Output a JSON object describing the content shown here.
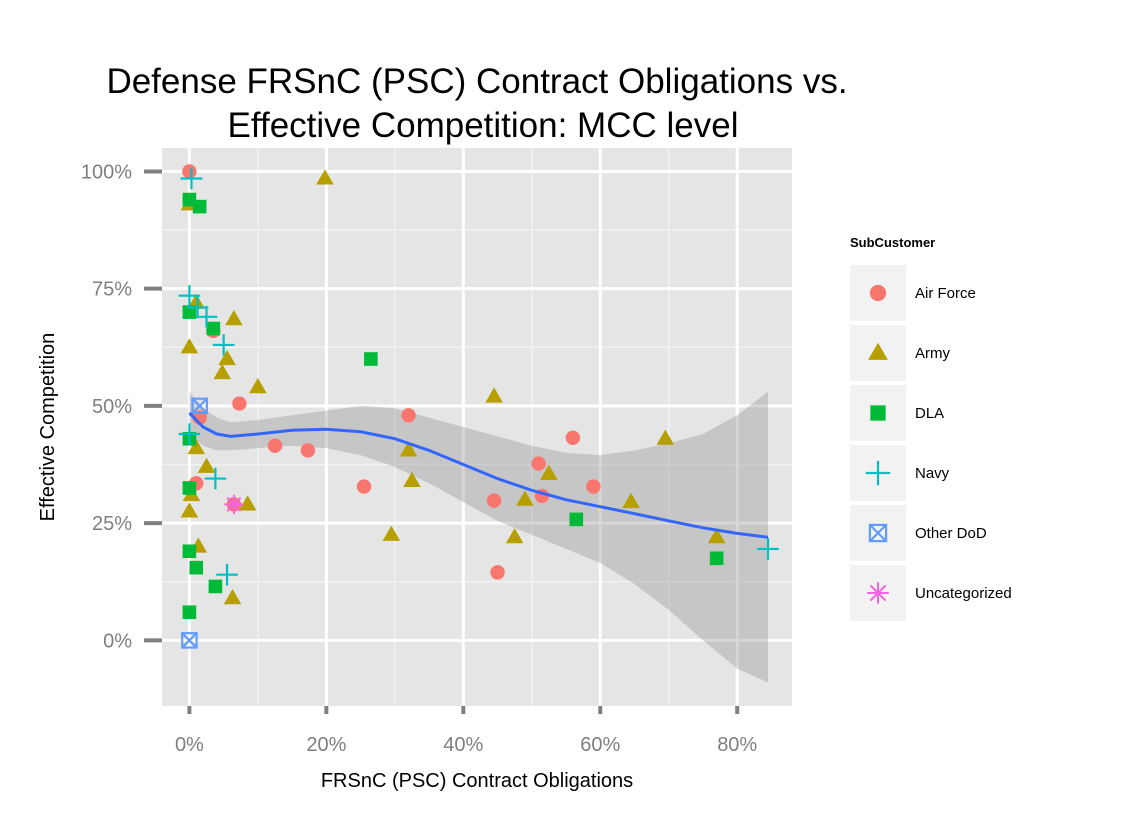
{
  "chart_data": {
    "type": "scatter",
    "title_lines": [
      "Defense FRSnC (PSC) Contract Obligations vs.",
      "Effective Competition: MCC level"
    ],
    "xlabel": "FRSnC (PSC) Contract Obligations",
    "ylabel": "Effective Competition",
    "xlim": [
      -0.04,
      0.88
    ],
    "ylim": [
      -0.14,
      1.05
    ],
    "x_ticks": [
      0,
      0.2,
      0.4,
      0.6,
      0.8
    ],
    "x_tick_labels": [
      "0%",
      "20%",
      "40%",
      "60%",
      "80%"
    ],
    "y_ticks": [
      0,
      0.25,
      0.5,
      0.75,
      1.0
    ],
    "y_tick_labels": [
      "0%",
      "25%",
      "50%",
      "75%",
      "100%"
    ],
    "grid": true,
    "legend_position": "right",
    "legend_title": "SubCustomer",
    "series": [
      {
        "name": "Air Force",
        "shape": "circle",
        "color": "#F8766D",
        "points": [
          [
            0.0,
            1.0
          ],
          [
            0.035,
            0.66
          ],
          [
            0.015,
            0.475
          ],
          [
            0.073,
            0.505
          ],
          [
            0.01,
            0.335
          ],
          [
            0.125,
            0.415
          ],
          [
            0.173,
            0.405
          ],
          [
            0.255,
            0.328
          ],
          [
            0.32,
            0.48
          ],
          [
            0.445,
            0.298
          ],
          [
            0.45,
            0.145
          ],
          [
            0.51,
            0.377
          ],
          [
            0.515,
            0.308
          ],
          [
            0.56,
            0.432
          ],
          [
            0.59,
            0.328
          ],
          [
            0.065,
            0.29
          ]
        ]
      },
      {
        "name": "Army",
        "shape": "triangle",
        "color": "#B79F00",
        "points": [
          [
            0.0,
            0.93
          ],
          [
            0.198,
            0.985
          ],
          [
            0.01,
            0.72
          ],
          [
            0.065,
            0.685
          ],
          [
            0.0,
            0.625
          ],
          [
            0.055,
            0.6
          ],
          [
            0.048,
            0.57
          ],
          [
            0.1,
            0.54
          ],
          [
            0.01,
            0.41
          ],
          [
            0.025,
            0.37
          ],
          [
            0.003,
            0.31
          ],
          [
            0.0,
            0.275
          ],
          [
            0.013,
            0.2
          ],
          [
            0.085,
            0.29
          ],
          [
            0.063,
            0.09
          ],
          [
            0.32,
            0.405
          ],
          [
            0.325,
            0.34
          ],
          [
            0.295,
            0.225
          ],
          [
            0.445,
            0.52
          ],
          [
            0.475,
            0.22
          ],
          [
            0.49,
            0.3
          ],
          [
            0.525,
            0.355
          ],
          [
            0.645,
            0.295
          ],
          [
            0.695,
            0.43
          ],
          [
            0.77,
            0.22
          ]
        ]
      },
      {
        "name": "DLA",
        "shape": "square",
        "color": "#00BA38",
        "points": [
          [
            0.0,
            0.94
          ],
          [
            0.015,
            0.925
          ],
          [
            0.0,
            0.7
          ],
          [
            0.035,
            0.665
          ],
          [
            0.265,
            0.6
          ],
          [
            0.0,
            0.43
          ],
          [
            0.0,
            0.325
          ],
          [
            0.0,
            0.19
          ],
          [
            0.01,
            0.155
          ],
          [
            0.038,
            0.115
          ],
          [
            0.0,
            0.06
          ],
          [
            0.565,
            0.258
          ],
          [
            0.77,
            0.175
          ]
        ]
      },
      {
        "name": "Navy",
        "shape": "plus",
        "color": "#00BFC4",
        "points": [
          [
            0.003,
            0.985
          ],
          [
            0.0,
            0.735
          ],
          [
            0.012,
            0.71
          ],
          [
            0.025,
            0.69
          ],
          [
            0.05,
            0.63
          ],
          [
            0.0,
            0.44
          ],
          [
            0.038,
            0.345
          ],
          [
            0.055,
            0.14
          ],
          [
            0.845,
            0.195
          ]
        ]
      },
      {
        "name": "Other DoD",
        "shape": "square-x",
        "color": "#619CFF",
        "points": [
          [
            0.015,
            0.5
          ],
          [
            0.0,
            0.0
          ]
        ]
      },
      {
        "name": "Uncategorized",
        "shape": "asterisk",
        "color": "#F564E3",
        "points": [
          [
            0.065,
            0.29
          ]
        ]
      }
    ],
    "smooth": {
      "color": "#3366FF",
      "x": [
        0.0,
        0.02,
        0.04,
        0.06,
        0.1,
        0.15,
        0.2,
        0.25,
        0.3,
        0.35,
        0.4,
        0.45,
        0.5,
        0.55,
        0.6,
        0.65,
        0.7,
        0.75,
        0.8,
        0.845
      ],
      "y": [
        0.485,
        0.455,
        0.44,
        0.435,
        0.44,
        0.448,
        0.45,
        0.445,
        0.43,
        0.405,
        0.375,
        0.345,
        0.32,
        0.3,
        0.285,
        0.27,
        0.255,
        0.24,
        0.228,
        0.22
      ],
      "lower": [
        0.44,
        0.415,
        0.405,
        0.405,
        0.41,
        0.415,
        0.41,
        0.395,
        0.37,
        0.335,
        0.295,
        0.255,
        0.225,
        0.195,
        0.165,
        0.12,
        0.065,
        0.0,
        -0.06,
        -0.09
      ],
      "upper": [
        0.53,
        0.495,
        0.475,
        0.465,
        0.47,
        0.48,
        0.49,
        0.5,
        0.495,
        0.475,
        0.455,
        0.435,
        0.415,
        0.4,
        0.395,
        0.405,
        0.42,
        0.44,
        0.48,
        0.53
      ]
    }
  }
}
